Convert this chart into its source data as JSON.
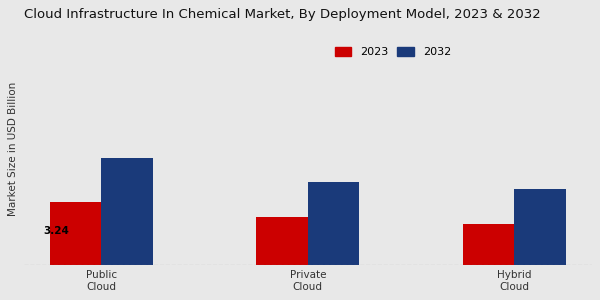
{
  "title": "Cloud Infrastructure In Chemical Market, By Deployment Model, 2023 & 2032",
  "ylabel": "Market Size in USD Billion",
  "categories": [
    "Public\nCloud",
    "Private\nCloud",
    "Hybrid\nCloud"
  ],
  "values_2023": [
    3.24,
    2.5,
    2.1
  ],
  "values_2032": [
    5.5,
    4.3,
    3.9
  ],
  "color_2023": "#cc0000",
  "color_2032": "#1a3a7a",
  "bar_width": 0.25,
  "annotation_label": "3.24",
  "background_color": "#e8e8e8",
  "legend_labels": [
    "2023",
    "2032"
  ],
  "ylim": [
    0,
    12
  ],
  "title_fontsize": 9.5,
  "axis_label_fontsize": 7.5,
  "tick_fontsize": 7.5,
  "legend_fontsize": 8
}
